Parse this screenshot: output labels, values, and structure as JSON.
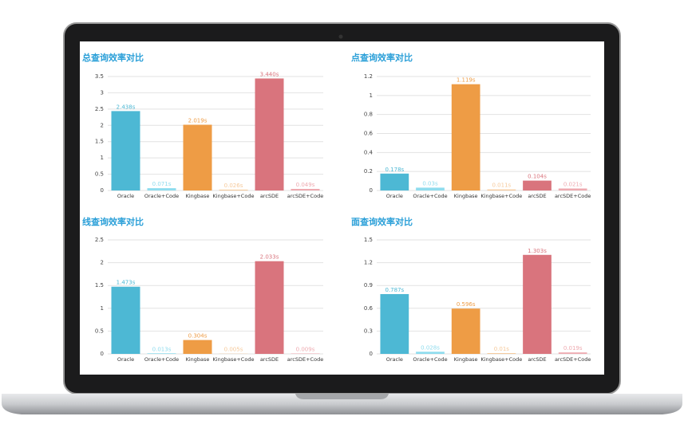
{
  "chart_data": [
    {
      "type": "bar",
      "title": "总查询效率对比",
      "categories": [
        "Oracle",
        "Oracle+Code",
        "Kingbase",
        "Kingbase+Code",
        "arcSDE",
        "arcSDE+Code"
      ],
      "values": [
        2.438,
        0.071,
        2.019,
        0.026,
        3.44,
        0.049
      ],
      "value_labels": [
        "2.438s",
        "0.071s",
        "2.019s",
        "0.026s",
        "3.440s",
        "0.049s"
      ],
      "colors": [
        "#4db8d4",
        "#8fdcee",
        "#ee9c45",
        "#f6c99a",
        "#d9747d",
        "#eeaab0"
      ],
      "ylim": [
        0,
        3.5
      ],
      "yticks": [
        0,
        0.5,
        1,
        1.5,
        2,
        2.5,
        3,
        3.5
      ],
      "grid": true
    },
    {
      "type": "bar",
      "title": "点查询效率对比",
      "categories": [
        "Oracle",
        "Oracle+Code",
        "Kingbase",
        "Kingbase+Code",
        "arcSDE",
        "arcSDE+Code"
      ],
      "values": [
        0.178,
        0.03,
        1.119,
        0.011,
        0.104,
        0.021
      ],
      "value_labels": [
        "0.178s",
        "0.03s",
        "1.119s",
        "0.011s",
        "0.104s",
        "0.021s"
      ],
      "colors": [
        "#4db8d4",
        "#8fdcee",
        "#ee9c45",
        "#f6c99a",
        "#d9747d",
        "#eeaab0"
      ],
      "ylim": [
        0,
        1.2
      ],
      "yticks": [
        0,
        0.2,
        0.4,
        0.6,
        0.8,
        1,
        1.2
      ],
      "grid": true
    },
    {
      "type": "bar",
      "title": "线查询效率对比",
      "categories": [
        "Oracle",
        "Oracle+Code",
        "Kingbase",
        "Kingbase+Code",
        "arcSDE",
        "arcSDE+Code"
      ],
      "values": [
        1.473,
        0.013,
        0.304,
        0.005,
        2.033,
        0.009
      ],
      "value_labels": [
        "1.473s",
        "0.013s",
        "0.304s",
        "0.005s",
        "2.033s",
        "0.009s"
      ],
      "colors": [
        "#4db8d4",
        "#8fdcee",
        "#ee9c45",
        "#f6c99a",
        "#d9747d",
        "#eeaab0"
      ],
      "ylim": [
        0,
        2.5
      ],
      "yticks": [
        0,
        0.5,
        1,
        1.5,
        2,
        2.5
      ],
      "grid": true
    },
    {
      "type": "bar",
      "title": "面查询效率对比",
      "categories": [
        "Oracle",
        "Oracle+Code",
        "Kingbase",
        "Kingbase+Code",
        "arcSDE",
        "arcSDE+Code"
      ],
      "values": [
        0.787,
        0.028,
        0.596,
        0.01,
        1.303,
        0.019
      ],
      "value_labels": [
        "0.787s",
        "0.028s",
        "0.596s",
        "0.01s",
        "1.303s",
        "0.019s"
      ],
      "colors": [
        "#4db8d4",
        "#8fdcee",
        "#ee9c45",
        "#f6c99a",
        "#d9747d",
        "#eeaab0"
      ],
      "ylim": [
        0,
        1.5
      ],
      "yticks": [
        0,
        0.3,
        0.6,
        0.9,
        1.2,
        1.5
      ],
      "grid": true
    }
  ]
}
